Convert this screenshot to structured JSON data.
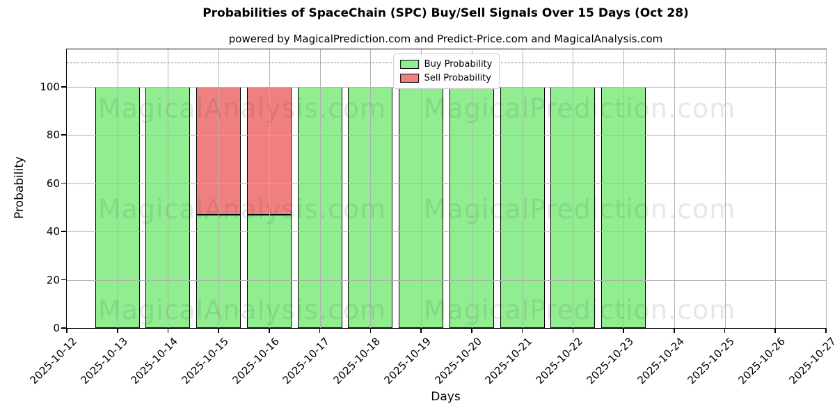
{
  "title": "Probabilities of SpaceChain (SPC) Buy/Sell Signals Over 15 Days (Oct 28)",
  "subtitle": "powered by MagicalPrediction.com and Predict-Price.com and MagicalAnalysis.com",
  "watermarks": {
    "left_text": "MagicalAnalysis.com",
    "right_text": "MagicalPrediction.com"
  },
  "legend": {
    "items": [
      {
        "label": "Buy Probability",
        "color": "#90ee90"
      },
      {
        "label": "Sell Probability",
        "color": "#f08080"
      }
    ]
  },
  "chart_data": {
    "type": "bar",
    "stacked": true,
    "title": "Probabilities of SpaceChain (SPC) Buy/Sell Signals Over 15 Days (Oct 28)",
    "subtitle": "powered by MagicalPrediction.com and Predict-Price.com and MagicalAnalysis.com",
    "xlabel": "Days",
    "ylabel": "Probability",
    "categories": [
      "2025-10-12",
      "2025-10-13",
      "2025-10-14",
      "2025-10-15",
      "2025-10-16",
      "2025-10-17",
      "2025-10-18",
      "2025-10-19",
      "2025-10-20",
      "2025-10-21",
      "2025-10-22",
      "2025-10-23",
      "2025-10-24",
      "2025-10-25",
      "2025-10-26",
      "2025-10-27"
    ],
    "series": [
      {
        "name": "Buy Probability",
        "color": "#90ee90",
        "values": [
          null,
          100,
          100,
          47,
          47,
          100,
          100,
          100,
          100,
          100,
          100,
          100,
          null,
          null,
          null,
          null
        ]
      },
      {
        "name": "Sell Probability",
        "color": "#f08080",
        "values": [
          null,
          0,
          0,
          53,
          53,
          0,
          0,
          0,
          0,
          0,
          0,
          0,
          null,
          null,
          null,
          null
        ]
      }
    ],
    "yticks": [
      0,
      20,
      40,
      60,
      80,
      100
    ],
    "ylim": [
      0,
      115.5
    ],
    "dashed_line_y": 110,
    "grid": true,
    "grid_color": "#b0b0b0",
    "bar_edge_color": "#000000",
    "legend_position": "top-center",
    "axis_color": "#000000"
  }
}
